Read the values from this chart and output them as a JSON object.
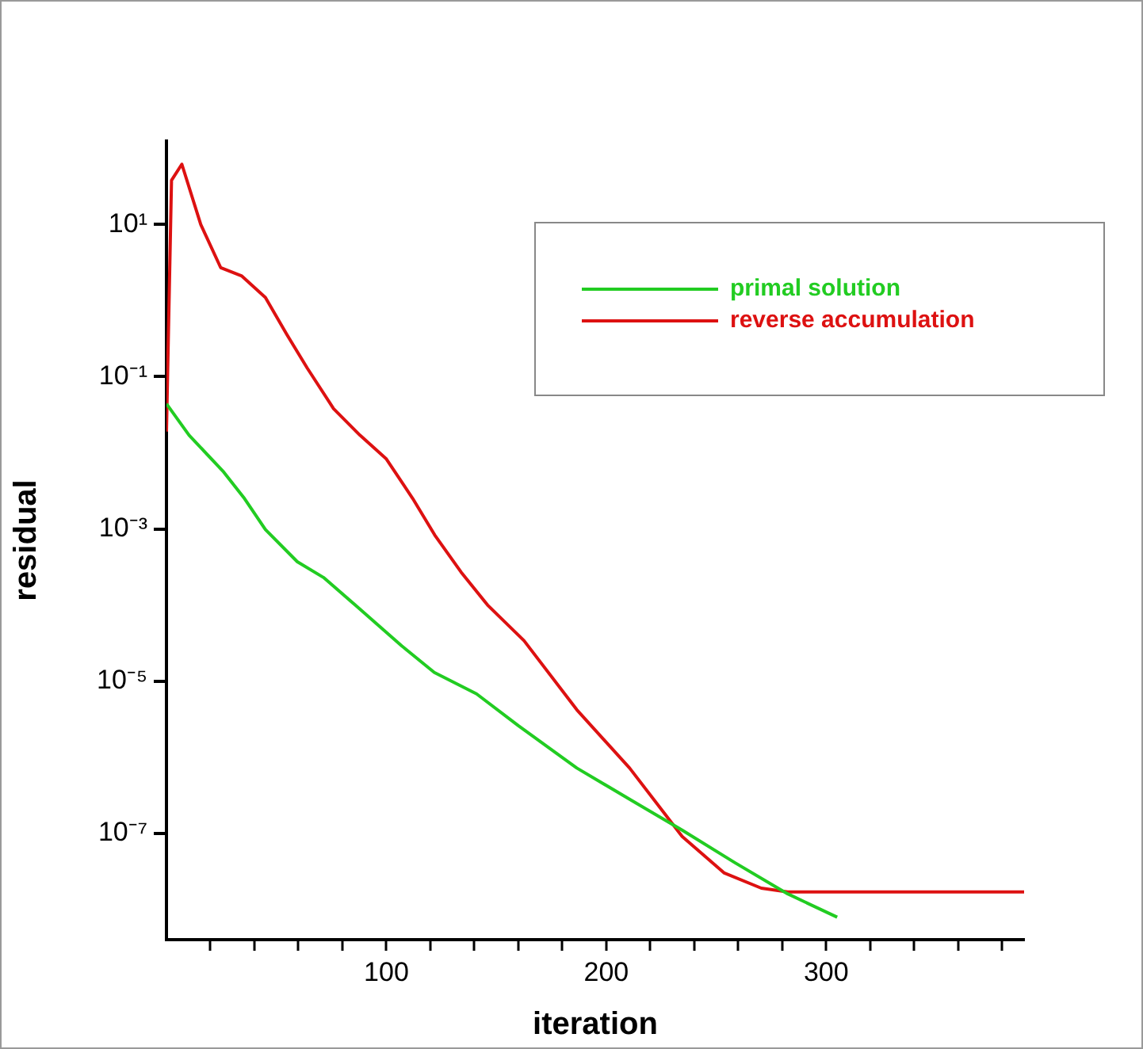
{
  "chart_data": {
    "type": "line",
    "xlabel": "iteration",
    "ylabel": "residual",
    "log": "y",
    "grid": false,
    "legend": "top right",
    "marker": "none",
    "line_style": "solid",
    "xlim": [
      0,
      390
    ],
    "ylim": [
      4e-09,
      125
    ],
    "xticks": [
      {
        "value": 20,
        "label": null
      },
      {
        "value": 40,
        "label": null
      },
      {
        "value": 60,
        "label": null
      },
      {
        "value": 80,
        "label": null
      },
      100,
      {
        "value": 120,
        "label": null
      },
      {
        "value": 140,
        "label": null
      },
      {
        "value": 160,
        "label": null
      },
      {
        "value": 180,
        "label": null
      },
      200,
      {
        "value": 220,
        "label": null
      },
      {
        "value": 240,
        "label": null
      },
      {
        "value": 260,
        "label": null
      },
      {
        "value": 280,
        "label": null
      },
      300,
      {
        "value": 320,
        "label": null
      },
      {
        "value": 340,
        "label": null
      },
      {
        "value": 360,
        "label": null
      },
      {
        "value": 380,
        "label": null
      }
    ],
    "yticks": [
      {
        "value": 1e-07,
        "label": "10⁻⁷"
      },
      {
        "value": 1e-05,
        "label": "10⁻⁵"
      },
      {
        "value": 0.001,
        "label": "10⁻³"
      },
      {
        "value": 0.1,
        "label": "10⁻¹"
      },
      {
        "value": 10,
        "label": "10¹"
      }
    ],
    "series": [
      {
        "name": "primal solution",
        "color": "#22cc22",
        "x": [
          0,
          10.3,
          26,
          35.5,
          45,
          59.5,
          71.4,
          85.8,
          107,
          121.8,
          141,
          160,
          186.6,
          210.6,
          234.5,
          258.5,
          282.5,
          305
        ],
        "values": [
          0.044,
          0.017,
          0.0056,
          0.0025,
          0.00098,
          0.00037,
          0.00023,
          0.0001,
          2.9e-05,
          1.3e-05,
          6.8e-06,
          2.6e-06,
          7.2e-07,
          2.8e-07,
          1.1e-07,
          4.1e-08,
          1.6e-08,
          7.9e-09
        ]
      },
      {
        "name": "reverse accumulation",
        "color": "#dd1111",
        "x": [
          0,
          2.3,
          7,
          15.6,
          24.7,
          34.3,
          45,
          54.7,
          64,
          76,
          88,
          100,
          112,
          122,
          134,
          146,
          162.6,
          186.6,
          210.6,
          234.5,
          253.7,
          270.5,
          282.5,
          390
        ],
        "values": [
          0.019,
          38,
          62,
          10,
          2.7,
          2.1,
          1.1,
          0.36,
          0.13,
          0.038,
          0.017,
          0.0083,
          0.0025,
          0.00083,
          0.00027,
          0.0001,
          3.4e-05,
          4.2e-06,
          7.2e-07,
          9.1e-08,
          3e-08,
          1.9e-08,
          1.7e-08,
          1.7e-08
        ]
      }
    ]
  }
}
